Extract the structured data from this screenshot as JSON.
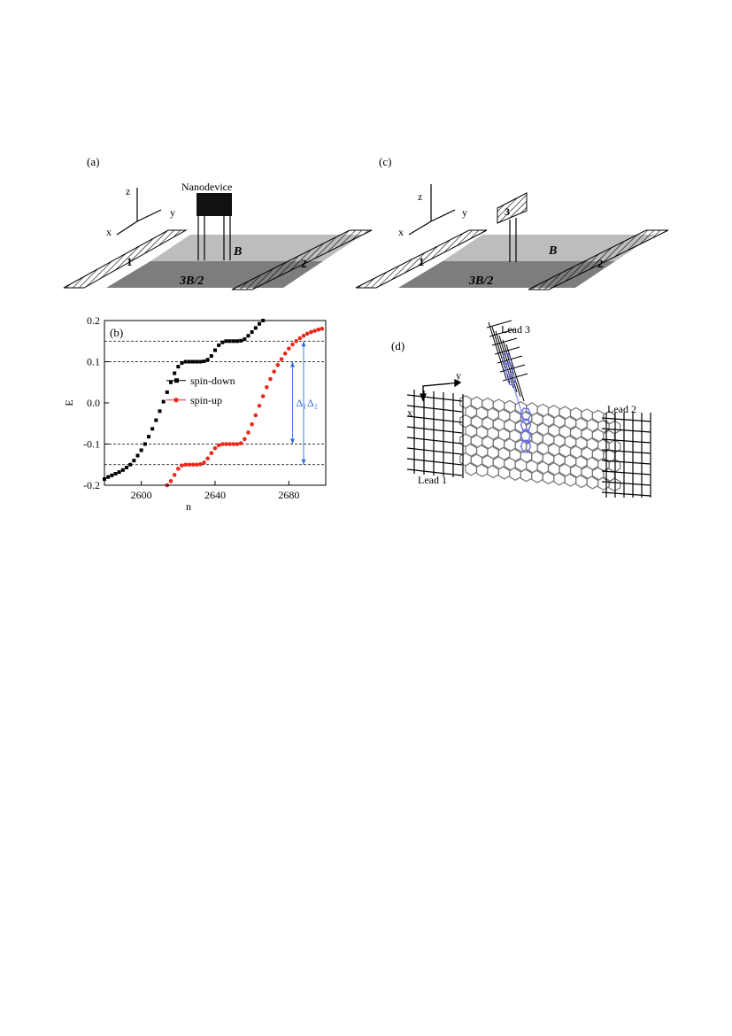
{
  "panels": {
    "a": {
      "label": "(a)",
      "nanodevice": "Nanodevice",
      "axes": {
        "z": "z",
        "y": "y",
        "x": "x"
      },
      "regions": {
        "upper": "B",
        "lower": "3B/2"
      },
      "leads": [
        "1",
        "2"
      ]
    },
    "c": {
      "label": "(c)",
      "axes": {
        "z": "z",
        "y": "y",
        "x": "x"
      },
      "regions": {
        "upper": "B",
        "lower": "3B/2"
      },
      "leads": [
        "1",
        "2",
        "3"
      ]
    },
    "b": {
      "label": "(b)"
    },
    "d": {
      "label": "(d)",
      "leads": {
        "lead1": "Lead 1",
        "lead2": "Lead 2",
        "lead3": "Lead 3"
      },
      "axes": {
        "x": "x",
        "y": "y"
      }
    }
  },
  "chart_data": {
    "type": "scatter",
    "xlabel": "n",
    "ylabel": "E",
    "xlim": [
      2580,
      2700
    ],
    "ylim": [
      -0.2,
      0.2
    ],
    "xticks": [
      2600,
      2640,
      2680
    ],
    "yticks": [
      -0.2,
      -0.1,
      0.0,
      0.1,
      0.2
    ],
    "xtick_labels": [
      "2600",
      "2640",
      "2680"
    ],
    "ytick_labels": [
      "-0.2",
      "-0.1",
      "0.0",
      "0.1",
      "0.2"
    ],
    "reference_lines": [
      0.15,
      0.1,
      -0.1,
      -0.15
    ],
    "annotations": [
      {
        "text": "Δ₁",
        "from": -0.1,
        "to": 0.1,
        "n": 2682
      },
      {
        "text": "Δ₂",
        "from": -0.15,
        "to": 0.15,
        "n": 2688
      }
    ],
    "legend_position": "center-left",
    "series": [
      {
        "name": "spin-down",
        "color": "#000000",
        "marker": "square",
        "points": [
          [
            2580,
            -0.185
          ],
          [
            2582,
            -0.18
          ],
          [
            2584,
            -0.176
          ],
          [
            2586,
            -0.172
          ],
          [
            2588,
            -0.168
          ],
          [
            2590,
            -0.163
          ],
          [
            2592,
            -0.157
          ],
          [
            2594,
            -0.15
          ],
          [
            2596,
            -0.14
          ],
          [
            2598,
            -0.128
          ],
          [
            2600,
            -0.115
          ],
          [
            2602,
            -0.1
          ],
          [
            2604,
            -0.082
          ],
          [
            2606,
            -0.063
          ],
          [
            2608,
            -0.042
          ],
          [
            2610,
            -0.02
          ],
          [
            2612,
            0.003
          ],
          [
            2614,
            0.026
          ],
          [
            2616,
            0.05
          ],
          [
            2618,
            0.072
          ],
          [
            2620,
            0.088
          ],
          [
            2622,
            0.097
          ],
          [
            2624,
            0.1
          ],
          [
            2626,
            0.1
          ],
          [
            2628,
            0.1
          ],
          [
            2630,
            0.1
          ],
          [
            2632,
            0.1
          ],
          [
            2634,
            0.101
          ],
          [
            2636,
            0.105
          ],
          [
            2638,
            0.114
          ],
          [
            2640,
            0.128
          ],
          [
            2642,
            0.14
          ],
          [
            2644,
            0.147
          ],
          [
            2646,
            0.15
          ],
          [
            2648,
            0.15
          ],
          [
            2650,
            0.15
          ],
          [
            2652,
            0.15
          ],
          [
            2654,
            0.151
          ],
          [
            2656,
            0.155
          ],
          [
            2658,
            0.163
          ],
          [
            2660,
            0.172
          ],
          [
            2662,
            0.182
          ],
          [
            2664,
            0.192
          ],
          [
            2666,
            0.2
          ]
        ]
      },
      {
        "name": "spin-up",
        "color": "#e8291c",
        "marker": "circle",
        "points": [
          [
            2614,
            -0.2
          ],
          [
            2616,
            -0.19
          ],
          [
            2618,
            -0.175
          ],
          [
            2620,
            -0.16
          ],
          [
            2622,
            -0.152
          ],
          [
            2624,
            -0.15
          ],
          [
            2626,
            -0.15
          ],
          [
            2628,
            -0.15
          ],
          [
            2630,
            -0.15
          ],
          [
            2632,
            -0.149
          ],
          [
            2634,
            -0.145
          ],
          [
            2636,
            -0.135
          ],
          [
            2638,
            -0.122
          ],
          [
            2640,
            -0.11
          ],
          [
            2642,
            -0.103
          ],
          [
            2644,
            -0.1
          ],
          [
            2646,
            -0.1
          ],
          [
            2648,
            -0.1
          ],
          [
            2650,
            -0.1
          ],
          [
            2652,
            -0.1
          ],
          [
            2654,
            -0.098
          ],
          [
            2656,
            -0.088
          ],
          [
            2658,
            -0.072
          ],
          [
            2660,
            -0.052
          ],
          [
            2662,
            -0.03
          ],
          [
            2664,
            -0.007
          ],
          [
            2666,
            0.016
          ],
          [
            2668,
            0.038
          ],
          [
            2670,
            0.058
          ],
          [
            2672,
            0.076
          ],
          [
            2674,
            0.092
          ],
          [
            2676,
            0.106
          ],
          [
            2678,
            0.12
          ],
          [
            2680,
            0.132
          ],
          [
            2682,
            0.142
          ],
          [
            2684,
            0.15
          ],
          [
            2686,
            0.157
          ],
          [
            2688,
            0.163
          ],
          [
            2690,
            0.168
          ],
          [
            2692,
            0.172
          ],
          [
            2694,
            0.175
          ],
          [
            2696,
            0.178
          ],
          [
            2698,
            0.18
          ]
        ]
      }
    ]
  }
}
